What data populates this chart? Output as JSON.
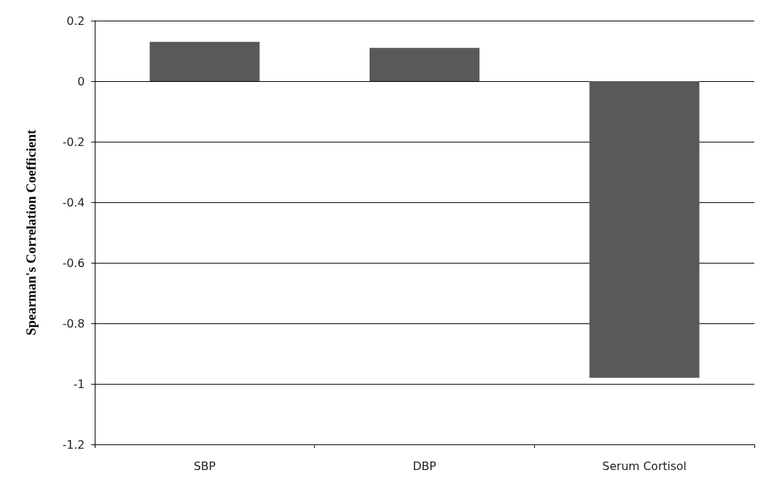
{
  "chart_data": {
    "type": "bar",
    "ylabel": "Spearman's Correlation Coefficient",
    "categories": [
      "SBP",
      "DBP",
      "Serum Cortisol"
    ],
    "series": [
      {
        "color": "#595959",
        "values": [
          0.13,
          0.11,
          -0.98
        ]
      }
    ],
    "ylim": [
      -1.2,
      0.2
    ],
    "yticks": [
      -1.2,
      -1,
      -0.8,
      -0.6,
      -0.4,
      -0.2,
      0,
      0.2
    ],
    "grid": "y"
  }
}
